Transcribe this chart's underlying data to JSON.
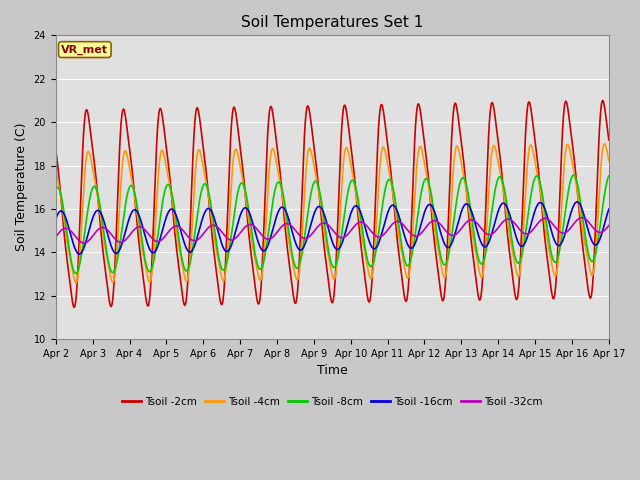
{
  "title": "Soil Temperatures Set 1",
  "xlabel": "Time",
  "ylabel": "Soil Temperature (C)",
  "ylim": [
    10,
    24
  ],
  "yticks": [
    10,
    12,
    14,
    16,
    18,
    20,
    22,
    24
  ],
  "x_tick_labels": [
    "Apr 2",
    "Apr 3",
    "Apr 4",
    "Apr 5",
    "Apr 6",
    "Apr 7",
    "Apr 8",
    "Apr 9",
    "Apr 10",
    "Apr 11",
    "Apr 12",
    "Apr 13",
    "Apr 14",
    "Apr 15",
    "Apr 16",
    "Apr 17"
  ],
  "series": [
    {
      "label": "Tsoil -2cm",
      "color": "#cc0000",
      "lw": 1.2
    },
    {
      "label": "Tsoil -4cm",
      "color": "#ff9900",
      "lw": 1.2
    },
    {
      "label": "Tsoil -8cm",
      "color": "#00cc00",
      "lw": 1.2
    },
    {
      "label": "Tsoil -16cm",
      "color": "#0000dd",
      "lw": 1.2
    },
    {
      "label": "Tsoil -32cm",
      "color": "#bb00bb",
      "lw": 1.2
    }
  ],
  "annotation_text": "VR_met",
  "title_fontsize": 11,
  "axis_label_fontsize": 9,
  "tick_fontsize": 7,
  "fig_facecolor": "#c8c8c8",
  "ax_facecolor": "#e0e0e0"
}
